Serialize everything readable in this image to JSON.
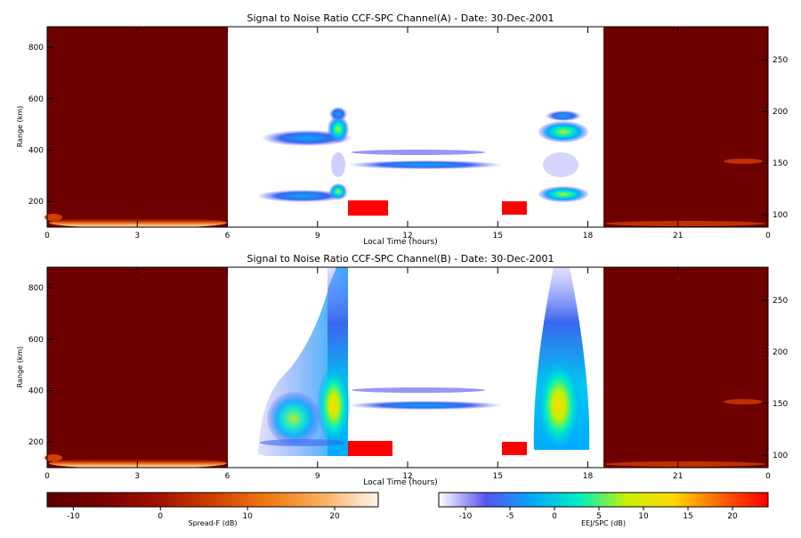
{
  "chart_data": [
    {
      "type": "heatmap",
      "title": "Signal to Noise Ratio CCF-SPC Channel(A) - Date: 30-Dec-2001",
      "xlabel": "Local Time (hours)",
      "ylabel": "Range (km)",
      "xticks": [
        "0",
        "3",
        "6",
        "9",
        "12",
        "15",
        "18",
        "21",
        "0"
      ],
      "yticks_left": [
        200,
        400,
        600,
        800
      ],
      "yticks_right": [
        100,
        150,
        200,
        250
      ],
      "ylim_left": [
        100,
        880
      ],
      "ylim_right": [
        88,
        282
      ],
      "features_spread_f": [
        {
          "x": [
            0,
            6
          ],
          "y": [
            100,
            145
          ],
          "level": "moderate"
        },
        {
          "x": [
            1,
            6
          ],
          "y": [
            100,
            120
          ],
          "level": "strong"
        },
        {
          "x": [
            20.5,
            22.5
          ],
          "y": [
            345,
            360
          ],
          "level": "moderate"
        }
      ],
      "features_ejspc": [
        {
          "x": [
            7.2,
            10.1
          ],
          "y": [
            420,
            480
          ],
          "level": "high"
        },
        {
          "x": [
            9.2,
            10.1
          ],
          "y": [
            480,
            570
          ],
          "level": "medium"
        },
        {
          "x": [
            7.2,
            10.1
          ],
          "y": [
            190,
            235
          ],
          "level": "medium"
        },
        {
          "x": [
            10.1,
            14.8
          ],
          "y": [
            300,
            400
          ],
          "level": "low"
        },
        {
          "x": [
            10.1,
            11.5
          ],
          "y": [
            150,
            190
          ],
          "level": "saturated"
        },
        {
          "x": [
            15.2,
            16.0
          ],
          "y": [
            150,
            190
          ],
          "level": "saturated"
        },
        {
          "x": [
            16.3,
            18.2
          ],
          "y": [
            420,
            520
          ],
          "level": "high"
        },
        {
          "x": [
            16.3,
            18.2
          ],
          "y": [
            180,
            245
          ],
          "level": "medium"
        }
      ]
    },
    {
      "type": "heatmap",
      "title": "Signal to Noise Ratio CCF-SPC Channel(B) - Date: 30-Dec-2001",
      "xlabel": "Local Time (hours)",
      "ylabel": "Range (km)",
      "xticks": [
        "0",
        "3",
        "6",
        "9",
        "12",
        "15",
        "18",
        "21",
        "0"
      ],
      "yticks_left": [
        200,
        400,
        600,
        800
      ],
      "yticks_right": [
        100,
        150,
        200,
        250
      ],
      "ylim_left": [
        100,
        880
      ],
      "ylim_right": [
        88,
        282
      ],
      "features_spread_f": [
        {
          "x": [
            0,
            6
          ],
          "y": [
            100,
            145
          ],
          "level": "moderate"
        },
        {
          "x": [
            1,
            6
          ],
          "y": [
            100,
            120
          ],
          "level": "strong"
        },
        {
          "x": [
            20.5,
            22.5
          ],
          "y": [
            345,
            360
          ],
          "level": "moderate"
        }
      ],
      "features_ejspc": [
        {
          "x": [
            7.0,
            10.1
          ],
          "y": [
            150,
            880
          ],
          "level": "plume"
        },
        {
          "x": [
            9.2,
            10.1
          ],
          "y": [
            250,
            350
          ],
          "level": "high"
        },
        {
          "x": [
            10.1,
            14.8
          ],
          "y": [
            310,
            410
          ],
          "level": "low"
        },
        {
          "x": [
            10.1,
            11.5
          ],
          "y": [
            150,
            190
          ],
          "level": "saturated"
        },
        {
          "x": [
            15.2,
            16.0
          ],
          "y": [
            150,
            190
          ],
          "level": "saturated"
        },
        {
          "x": [
            16.1,
            18.3
          ],
          "y": [
            170,
            880
          ],
          "level": "plume"
        },
        {
          "x": [
            16.6,
            17.8
          ],
          "y": [
            250,
            420
          ],
          "level": "high"
        }
      ]
    }
  ],
  "colorbars": [
    {
      "label": "Spread-F (dB)",
      "ticks": [
        "-10",
        "0",
        "10",
        "20"
      ],
      "range": [
        -13,
        25
      ],
      "colors": [
        "#5a0000",
        "#7a0000",
        "#a01000",
        "#d04000",
        "#f07a10",
        "#fbb060",
        "#fff4ea"
      ]
    },
    {
      "label": "EEJ/SPC (dB)",
      "ticks": [
        "-10",
        "-5",
        "0",
        "5",
        "10",
        "15",
        "20"
      ],
      "range": [
        -13,
        24
      ],
      "colors": [
        "#ffffff",
        "#5555ee",
        "#00aaff",
        "#00f0c0",
        "#c8f000",
        "#ffd800",
        "#ff6000",
        "#ff0000"
      ]
    }
  ]
}
